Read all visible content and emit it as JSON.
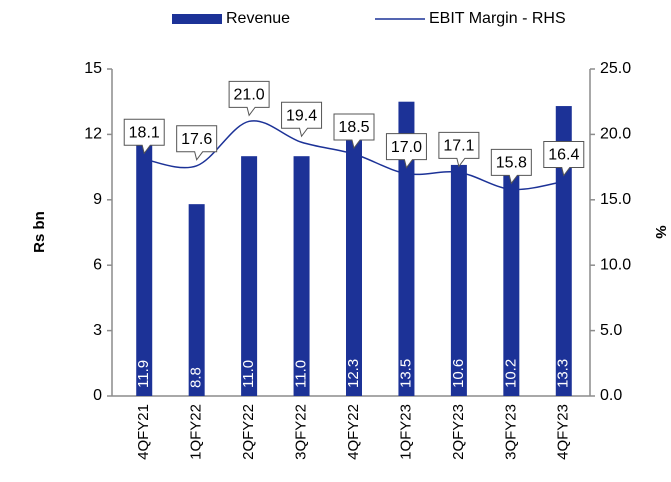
{
  "chart_data": {
    "type": "bar-line",
    "y_label": "Rs bn",
    "y2_label": "%",
    "categories": [
      "4QFY21",
      "1QFY22",
      "2QFY22",
      "3QFY22",
      "4QFY22",
      "1QFY23",
      "2QFY23",
      "3QFY23",
      "4QFY23"
    ],
    "series": [
      {
        "name": "Revenue",
        "type": "bar",
        "color": "#1c3297",
        "values": [
          11.9,
          8.8,
          11.0,
          11.0,
          12.3,
          13.5,
          10.6,
          10.2,
          13.3
        ],
        "value_labels": [
          "11.9",
          "8.8",
          "11.0",
          "11.0",
          "12.3",
          "13.5",
          "10.6",
          "10.2",
          "13.3"
        ]
      },
      {
        "name": "EBIT Margin - RHS",
        "type": "line",
        "axis": "y2",
        "color": "#1c3297",
        "values": [
          18.1,
          17.6,
          21.0,
          19.4,
          18.5,
          17.0,
          17.1,
          15.8,
          16.4
        ],
        "value_labels": [
          "18.1",
          "17.6",
          "21.0",
          "19.4",
          "18.5",
          "17.0",
          "17.1",
          "15.8",
          "16.4"
        ]
      }
    ],
    "ylim": [
      0,
      15
    ],
    "yticks": [
      0,
      3,
      6,
      9,
      12,
      15
    ],
    "y2lim": [
      0,
      25
    ],
    "y2ticks": [
      {
        "value": 0,
        "label": "0.0"
      },
      {
        "value": 5,
        "label": "5.0"
      },
      {
        "value": 10,
        "label": "10.0"
      },
      {
        "value": 15,
        "label": "15.0"
      },
      {
        "value": 20,
        "label": "20.0"
      },
      {
        "value": 25,
        "label": "25.0"
      }
    ],
    "grid": false,
    "legend": "top"
  }
}
